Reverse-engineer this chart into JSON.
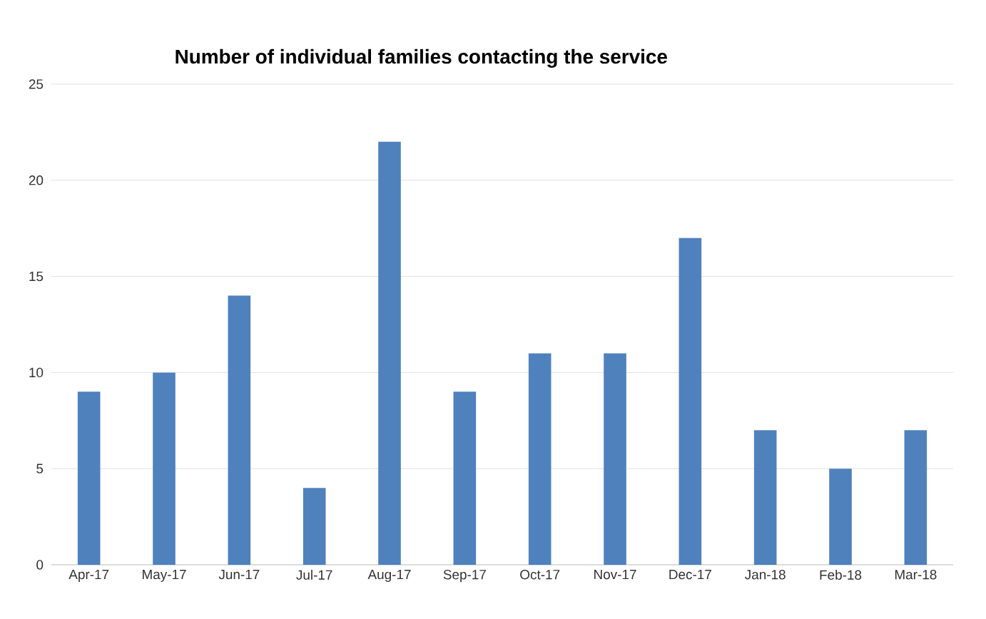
{
  "chart_data": {
    "type": "bar",
    "title": "Number of individual families contacting the service",
    "categories": [
      "Apr-17",
      "May-17",
      "Jun-17",
      "Jul-17",
      "Aug-17",
      "Sep-17",
      "Oct-17",
      "Nov-17",
      "Dec-17",
      "Jan-18",
      "Feb-18",
      "Mar-18"
    ],
    "values": [
      9,
      10,
      14,
      4,
      22,
      9,
      11,
      11,
      17,
      7,
      5,
      7
    ],
    "color": "#4f81bd",
    "ylim": [
      0,
      25
    ],
    "yticks": [
      0,
      5,
      10,
      15,
      20,
      25
    ],
    "grid": "y"
  }
}
